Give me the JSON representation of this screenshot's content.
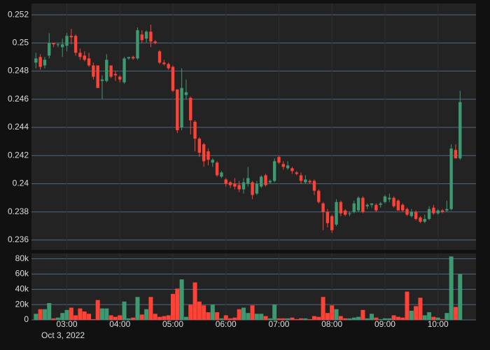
{
  "chart_data": {
    "type": "candlestick",
    "x": [
      "2022-10-03T02:25",
      "2022-10-03T02:30",
      "2022-10-03T02:35",
      "2022-10-03T02:40",
      "2022-10-03T02:45",
      "2022-10-03T02:50",
      "2022-10-03T02:55",
      "2022-10-03T03:00",
      "2022-10-03T03:05",
      "2022-10-03T03:10",
      "2022-10-03T03:15",
      "2022-10-03T03:20",
      "2022-10-03T03:25",
      "2022-10-03T03:30",
      "2022-10-03T03:35",
      "2022-10-03T03:40",
      "2022-10-03T03:45",
      "2022-10-03T03:50",
      "2022-10-03T03:55",
      "2022-10-03T04:00",
      "2022-10-03T04:05",
      "2022-10-03T04:10",
      "2022-10-03T04:15",
      "2022-10-03T04:20",
      "2022-10-03T04:25",
      "2022-10-03T04:30",
      "2022-10-03T04:35",
      "2022-10-03T04:40",
      "2022-10-03T04:45",
      "2022-10-03T04:50",
      "2022-10-03T04:55",
      "2022-10-03T05:00",
      "2022-10-03T05:05",
      "2022-10-03T05:10",
      "2022-10-03T05:15",
      "2022-10-03T05:20",
      "2022-10-03T05:25",
      "2022-10-03T05:30",
      "2022-10-03T05:35",
      "2022-10-03T05:40",
      "2022-10-03T05:45",
      "2022-10-03T05:50",
      "2022-10-03T05:55",
      "2022-10-03T06:00",
      "2022-10-03T06:05",
      "2022-10-03T06:10",
      "2022-10-03T06:15",
      "2022-10-03T06:20",
      "2022-10-03T06:25",
      "2022-10-03T06:30",
      "2022-10-03T06:35",
      "2022-10-03T06:40",
      "2022-10-03T06:45",
      "2022-10-03T06:50",
      "2022-10-03T06:55",
      "2022-10-03T07:00",
      "2022-10-03T07:05",
      "2022-10-03T07:10",
      "2022-10-03T07:15",
      "2022-10-03T07:20",
      "2022-10-03T07:25",
      "2022-10-03T07:30",
      "2022-10-03T07:35",
      "2022-10-03T07:40",
      "2022-10-03T07:45",
      "2022-10-03T07:50",
      "2022-10-03T07:55",
      "2022-10-03T08:00",
      "2022-10-03T08:05",
      "2022-10-03T08:10",
      "2022-10-03T08:15",
      "2022-10-03T08:20",
      "2022-10-03T08:25",
      "2022-10-03T08:30",
      "2022-10-03T08:35",
      "2022-10-03T08:40",
      "2022-10-03T08:45",
      "2022-10-03T08:50",
      "2022-10-03T08:55",
      "2022-10-03T09:00",
      "2022-10-03T09:05",
      "2022-10-03T09:10",
      "2022-10-03T09:15",
      "2022-10-03T09:20",
      "2022-10-03T09:25",
      "2022-10-03T09:30",
      "2022-10-03T09:35",
      "2022-10-03T09:40",
      "2022-10-03T09:45",
      "2022-10-03T09:50",
      "2022-10-03T09:55",
      "2022-10-03T10:00",
      "2022-10-03T10:05",
      "2022-10-03T10:10",
      "2022-10-03T10:15",
      "2022-10-03T10:20",
      "2022-10-03T10:25"
    ],
    "open": [
      0.2486,
      0.249,
      0.2484,
      0.2491,
      0.25,
      0.2499,
      0.2497,
      0.2498,
      0.2505,
      0.2505,
      0.2493,
      0.2491,
      0.2489,
      0.2484,
      0.2484,
      0.2473,
      0.2473,
      0.2484,
      0.2478,
      0.2476,
      0.2472,
      0.2489,
      0.249,
      0.2489,
      0.2506,
      0.2503,
      0.2508,
      0.2501,
      0.2494,
      0.2486,
      0.2485,
      0.2483,
      0.2467,
      0.244,
      0.2463,
      0.2461,
      0.2444,
      0.2432,
      0.2428,
      0.2423,
      0.2415,
      0.2415,
      0.2405,
      0.2403,
      0.2401,
      0.24,
      0.2399,
      0.2396,
      0.24,
      0.2401,
      0.2393,
      0.2398,
      0.2406,
      0.2401,
      0.2402,
      0.2419,
      0.2414,
      0.2411,
      0.2411,
      0.2408,
      0.2406,
      0.2401,
      0.2402,
      0.2402,
      0.2395,
      0.2386,
      0.238,
      0.2377,
      0.2371,
      0.2387,
      0.2381,
      0.2379,
      0.238,
      0.2381,
      0.239,
      0.2384,
      0.2385,
      0.2385,
      0.2385,
      0.2387,
      0.2389,
      0.239,
      0.2388,
      0.2385,
      0.2382,
      0.2377,
      0.238,
      0.2376,
      0.2373,
      0.2375,
      0.2383,
      0.2379,
      0.2381,
      0.2381,
      0.2382,
      0.2424,
      0.2418
    ],
    "high": [
      0.2493,
      0.2492,
      0.249,
      0.2507,
      0.25,
      0.25,
      0.2503,
      0.2507,
      0.251,
      0.2506,
      0.2496,
      0.2494,
      0.2493,
      0.2486,
      0.2484,
      0.2477,
      0.2492,
      0.2484,
      0.248,
      0.2477,
      0.249,
      0.249,
      0.2491,
      0.2511,
      0.2509,
      0.2509,
      0.2513,
      0.2502,
      0.2495,
      0.2488,
      0.2486,
      0.2484,
      0.2467,
      0.2482,
      0.2474,
      0.2462,
      0.2445,
      0.2433,
      0.2429,
      0.2425,
      0.2418,
      0.2416,
      0.2409,
      0.2404,
      0.2402,
      0.2404,
      0.2402,
      0.2404,
      0.2412,
      0.2402,
      0.2402,
      0.2406,
      0.2407,
      0.2403,
      0.2418,
      0.242,
      0.2416,
      0.2416,
      0.2412,
      0.2409,
      0.2408,
      0.2406,
      0.2403,
      0.2403,
      0.2396,
      0.2387,
      0.2382,
      0.2378,
      0.2389,
      0.2388,
      0.2382,
      0.238,
      0.2388,
      0.2391,
      0.2391,
      0.2386,
      0.2386,
      0.2386,
      0.2387,
      0.2392,
      0.2393,
      0.2391,
      0.2389,
      0.2386,
      0.2383,
      0.2382,
      0.2381,
      0.2377,
      0.2378,
      0.2384,
      0.2385,
      0.2382,
      0.2382,
      0.2388,
      0.2428,
      0.2428,
      0.2466
    ],
    "low": [
      0.2482,
      0.2481,
      0.2482,
      0.2489,
      0.2497,
      0.2497,
      0.249,
      0.2494,
      0.2499,
      0.2491,
      0.2488,
      0.2487,
      0.2483,
      0.2474,
      0.2468,
      0.246,
      0.2472,
      0.2475,
      0.2473,
      0.2472,
      0.2471,
      0.2488,
      0.2488,
      0.2488,
      0.25,
      0.25,
      0.2497,
      0.2499,
      0.2485,
      0.2484,
      0.2481,
      0.2465,
      0.2436,
      0.2438,
      0.246,
      0.2435,
      0.2423,
      0.2419,
      0.2412,
      0.2413,
      0.2412,
      0.2405,
      0.2404,
      0.2398,
      0.2397,
      0.2396,
      0.2394,
      0.2393,
      0.2398,
      0.2389,
      0.2392,
      0.2397,
      0.2398,
      0.24,
      0.2401,
      0.2414,
      0.241,
      0.241,
      0.2407,
      0.2406,
      0.24,
      0.24,
      0.24,
      0.2392,
      0.2386,
      0.2367,
      0.2369,
      0.2365,
      0.237,
      0.2377,
      0.2377,
      0.2377,
      0.2379,
      0.238,
      0.2379,
      0.2382,
      0.2383,
      0.238,
      0.2383,
      0.2386,
      0.2387,
      0.2383,
      0.2382,
      0.238,
      0.2377,
      0.2376,
      0.2374,
      0.2372,
      0.2372,
      0.2374,
      0.2378,
      0.2378,
      0.2379,
      0.238,
      0.2381,
      0.2418,
      0.2417
    ],
    "close": [
      0.2489,
      0.2483,
      0.2488,
      0.25,
      0.2499,
      0.2499,
      0.2499,
      0.2505,
      0.2504,
      0.2493,
      0.249,
      0.2488,
      0.2484,
      0.2476,
      0.2468,
      0.2474,
      0.2488,
      0.2476,
      0.2477,
      0.2474,
      0.2489,
      0.249,
      0.2489,
      0.2509,
      0.2502,
      0.2508,
      0.2501,
      0.25,
      0.2486,
      0.2485,
      0.2482,
      0.2466,
      0.2438,
      0.2468,
      0.2465,
      0.2445,
      0.2432,
      0.2422,
      0.2416,
      0.2417,
      0.2417,
      0.2406,
      0.2408,
      0.24,
      0.2399,
      0.2398,
      0.2396,
      0.2401,
      0.2404,
      0.2392,
      0.24,
      0.2405,
      0.2399,
      0.2402,
      0.2416,
      0.2415,
      0.2412,
      0.2413,
      0.2409,
      0.2407,
      0.2402,
      0.2403,
      0.2401,
      0.2395,
      0.2387,
      0.238,
      0.2372,
      0.2367,
      0.2387,
      0.2379,
      0.2378,
      0.2379,
      0.2386,
      0.239,
      0.238,
      0.2385,
      0.2386,
      0.2381,
      0.2386,
      0.2391,
      0.239,
      0.2384,
      0.2381,
      0.2381,
      0.2378,
      0.238,
      0.2375,
      0.2373,
      0.2375,
      0.2382,
      0.2379,
      0.2381,
      0.238,
      0.2382,
      0.2425,
      0.2418,
      0.2458
    ],
    "volume": [
      8000,
      14000,
      14000,
      22000,
      2000,
      3000,
      9000,
      13000,
      16000,
      6000,
      15000,
      11000,
      8000,
      1000,
      26000,
      15000,
      15000,
      6000,
      4000,
      6000,
      24000,
      2000,
      3000,
      30000,
      7000,
      14000,
      30000,
      8000,
      4000,
      5000,
      6000,
      34000,
      41000,
      53000,
      4000,
      20000,
      49000,
      24000,
      19000,
      10000,
      20000,
      10000,
      2000,
      6000,
      2000,
      3000,
      14000,
      16000,
      9000,
      19000,
      8000,
      8000,
      5000,
      2000,
      20000,
      2000,
      2000,
      2000,
      3000,
      1000,
      2000,
      2000,
      1000,
      5000,
      4000,
      30000,
      9000,
      19000,
      14000,
      5000,
      2000,
      2000,
      3000,
      4000,
      13000,
      2000,
      8000,
      3000,
      1000,
      2000,
      2000,
      6000,
      4000,
      3000,
      37000,
      12000,
      18000,
      29000,
      6000,
      10000,
      4000,
      3000,
      1000,
      9000,
      83000,
      17000,
      60000
    ],
    "increasing_color": "#3d9970",
    "decreasing_color": "#ff4136",
    "xlim": [
      "2022-10-03T02:20",
      "2022-10-03T10:43"
    ],
    "xticks": [
      {
        "value": "2022-10-03T03:00",
        "label": "03:00"
      },
      {
        "value": "2022-10-03T04:00",
        "label": "04:00"
      },
      {
        "value": "2022-10-03T05:00",
        "label": "05:00"
      },
      {
        "value": "2022-10-03T06:00",
        "label": "06:00"
      },
      {
        "value": "2022-10-03T07:00",
        "label": "07:00"
      },
      {
        "value": "2022-10-03T08:00",
        "label": "08:00"
      },
      {
        "value": "2022-10-03T09:00",
        "label": "09:00"
      },
      {
        "value": "2022-10-03T10:00",
        "label": "10:00"
      }
    ],
    "date_label": "Oct 3, 2022",
    "ylim": [
      0.2353,
      0.2528
    ],
    "yticks": [
      0.236,
      0.238,
      0.24,
      0.242,
      0.244,
      0.246,
      0.248,
      0.25,
      0.252
    ],
    "y2lim": [
      0,
      87000
    ],
    "y2ticks": [
      0,
      {
        "value": 20000,
        "label": "20k"
      },
      {
        "value": 40000,
        "label": "40k"
      },
      {
        "value": 60000,
        "label": "60k"
      },
      {
        "value": 80000,
        "label": "80k"
      }
    ],
    "grid": true
  }
}
